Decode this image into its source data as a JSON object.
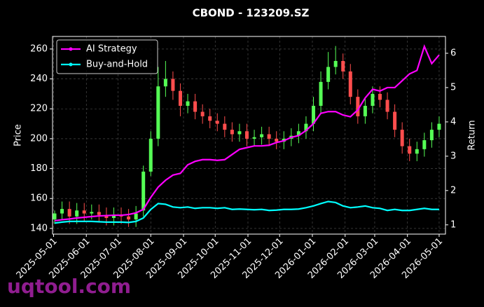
{
  "chart_data": {
    "type": "candlestick",
    "title": "CBOND - 123209.SZ",
    "ylabel": "Price",
    "y2label": "Return",
    "watermark": "uqtool.com",
    "x": [
      "2025-05-02",
      "2025-05-09",
      "2025-05-16",
      "2025-05-23",
      "2025-05-30",
      "2025-06-06",
      "2025-06-13",
      "2025-06-20",
      "2025-06-27",
      "2025-07-04",
      "2025-07-11",
      "2025-07-18",
      "2025-07-25",
      "2025-08-01",
      "2025-08-08",
      "2025-08-15",
      "2025-08-22",
      "2025-08-29",
      "2025-09-05",
      "2025-09-12",
      "2025-09-19",
      "2025-09-26",
      "2025-10-03",
      "2025-10-10",
      "2025-10-17",
      "2025-10-24",
      "2025-10-31",
      "2025-11-07",
      "2025-11-14",
      "2025-11-21",
      "2025-11-28",
      "2025-12-05",
      "2025-12-12",
      "2025-12-19",
      "2025-12-26",
      "2026-01-02",
      "2026-01-09",
      "2026-01-16",
      "2026-01-23",
      "2026-01-30",
      "2026-02-06",
      "2026-02-13",
      "2026-02-20",
      "2026-02-27",
      "2026-03-06",
      "2026-03-13",
      "2026-03-20",
      "2026-03-27",
      "2026-04-03",
      "2026-04-10",
      "2026-04-17",
      "2026-04-24",
      "2026-05-01"
    ],
    "candles": {
      "up_color": "#55ff55",
      "down_color": "#ff4d4d",
      "open": [
        146,
        150,
        153,
        148,
        152,
        150,
        151,
        149,
        147,
        149,
        148,
        146,
        152,
        178,
        200,
        235,
        240,
        232,
        222,
        225,
        218,
        215,
        212,
        210,
        206,
        203,
        205,
        200,
        201,
        203,
        200,
        198,
        200,
        202,
        205,
        210,
        222,
        238,
        248,
        252,
        245,
        228,
        215,
        222,
        230,
        226,
        218,
        206,
        195,
        190,
        193,
        199,
        206
      ],
      "high": [
        152,
        158,
        158,
        157,
        157,
        156,
        156,
        154,
        154,
        154,
        153,
        155,
        182,
        205,
        248,
        252,
        245,
        237,
        230,
        230,
        223,
        220,
        217,
        215,
        211,
        210,
        210,
        206,
        208,
        208,
        205,
        205,
        207,
        210,
        215,
        228,
        245,
        258,
        262,
        257,
        250,
        233,
        227,
        235,
        235,
        231,
        223,
        211,
        200,
        198,
        204,
        211,
        215
      ],
      "low": [
        143,
        146,
        143,
        143,
        145,
        146,
        144,
        142,
        142,
        143,
        141,
        141,
        148,
        175,
        195,
        228,
        226,
        215,
        217,
        213,
        210,
        207,
        205,
        201,
        198,
        198,
        195,
        195,
        196,
        195,
        193,
        193,
        195,
        197,
        200,
        205,
        217,
        233,
        243,
        240,
        223,
        210,
        210,
        217,
        221,
        213,
        201,
        190,
        185,
        185,
        188,
        194,
        201
      ],
      "close": [
        150,
        153,
        148,
        152,
        150,
        151,
        149,
        147,
        149,
        148,
        146,
        150,
        178,
        200,
        235,
        240,
        232,
        222,
        225,
        218,
        215,
        212,
        210,
        206,
        203,
        205,
        200,
        201,
        203,
        200,
        198,
        200,
        202,
        205,
        210,
        222,
        238,
        248,
        252,
        245,
        228,
        215,
        222,
        230,
        226,
        218,
        206,
        195,
        190,
        193,
        199,
        206,
        210
      ]
    },
    "series": [
      {
        "name": "AI Strategy",
        "color": "#ff00ff",
        "axis": "y2",
        "values": [
          1.12,
          1.15,
          1.17,
          1.2,
          1.22,
          1.24,
          1.26,
          1.27,
          1.28,
          1.28,
          1.3,
          1.35,
          1.45,
          1.8,
          2.1,
          2.3,
          2.45,
          2.5,
          2.75,
          2.85,
          2.9,
          2.9,
          2.88,
          2.9,
          3.05,
          3.2,
          3.25,
          3.3,
          3.3,
          3.32,
          3.4,
          3.45,
          3.55,
          3.6,
          3.75,
          3.95,
          4.25,
          4.3,
          4.3,
          4.2,
          4.15,
          4.35,
          4.7,
          4.95,
          4.9,
          5.0,
          5.0,
          5.2,
          5.4,
          5.5,
          6.2,
          5.7,
          5.95
        ]
      },
      {
        "name": "Buy-and-Hold",
        "color": "#00ffff",
        "axis": "y2",
        "values": [
          1.05,
          1.08,
          1.1,
          1.1,
          1.1,
          1.1,
          1.09,
          1.08,
          1.08,
          1.08,
          1.07,
          1.1,
          1.2,
          1.45,
          1.62,
          1.6,
          1.52,
          1.5,
          1.52,
          1.48,
          1.5,
          1.5,
          1.48,
          1.5,
          1.45,
          1.46,
          1.45,
          1.44,
          1.45,
          1.42,
          1.43,
          1.45,
          1.45,
          1.46,
          1.5,
          1.55,
          1.62,
          1.68,
          1.65,
          1.55,
          1.5,
          1.52,
          1.55,
          1.5,
          1.48,
          1.42,
          1.45,
          1.42,
          1.42,
          1.45,
          1.48,
          1.45,
          1.45
        ]
      }
    ],
    "xlim": [
      "2025-04-30",
      "2026-05-07"
    ],
    "xticks": [
      "2025-05-01",
      "2025-06-01",
      "2025-07-01",
      "2025-08-01",
      "2025-09-01",
      "2025-10-01",
      "2025-11-01",
      "2025-12-01",
      "2026-01-01",
      "2026-02-01",
      "2026-03-01",
      "2026-04-01",
      "2026-05-01"
    ],
    "ylim": [
      136.2,
      268.4
    ],
    "yticks": [
      140,
      160,
      180,
      200,
      220,
      240,
      260
    ],
    "y2lim": [
      0.73,
      6.49
    ],
    "y2ticks": [
      1,
      2,
      3,
      4,
      5,
      6
    ],
    "grid": true,
    "legend": "upper left"
  }
}
